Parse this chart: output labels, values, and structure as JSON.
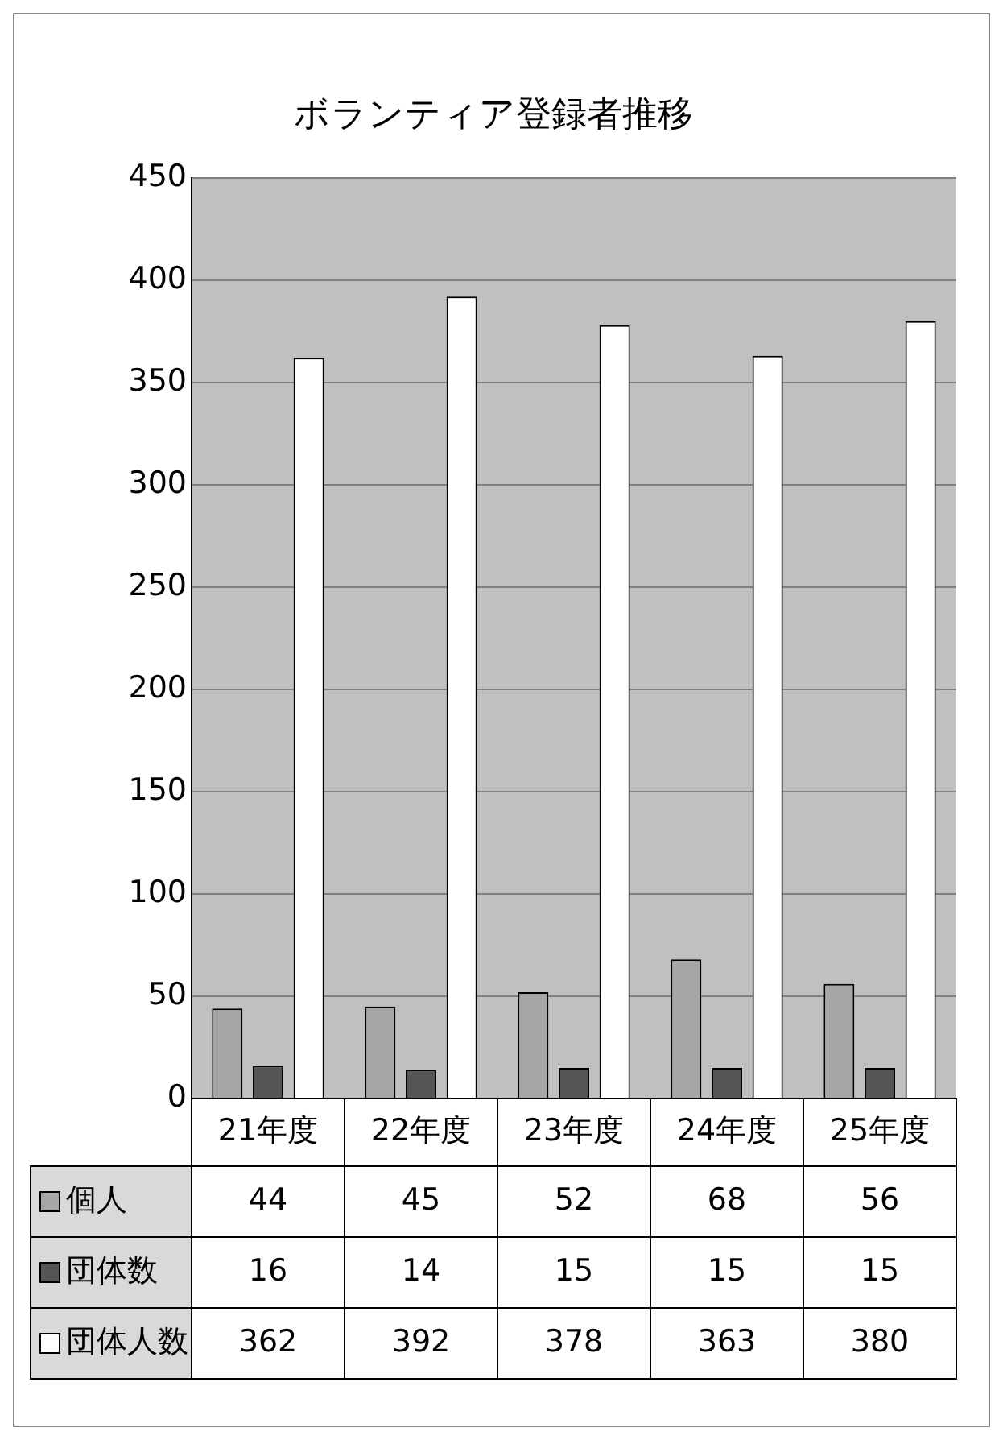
{
  "chart_data": {
    "type": "bar",
    "title": "ボランティア登録者推移",
    "categories": [
      "21年度",
      "22年度",
      "23年度",
      "24年度",
      "25年度"
    ],
    "series": [
      {
        "name": "個人",
        "color": "#a6a6a6",
        "values": [
          44,
          45,
          52,
          68,
          56
        ]
      },
      {
        "name": "団体数",
        "color": "#555555",
        "values": [
          16,
          14,
          15,
          15,
          15
        ]
      },
      {
        "name": "団体人数",
        "color": "#ffffff",
        "values": [
          362,
          392,
          378,
          363,
          380
        ]
      }
    ],
    "ylim": [
      0,
      450
    ],
    "yticks": [
      0,
      50,
      100,
      150,
      200,
      250,
      300,
      350,
      400,
      450
    ],
    "grid": "y",
    "data_labels": true,
    "legend": "bottom left"
  }
}
